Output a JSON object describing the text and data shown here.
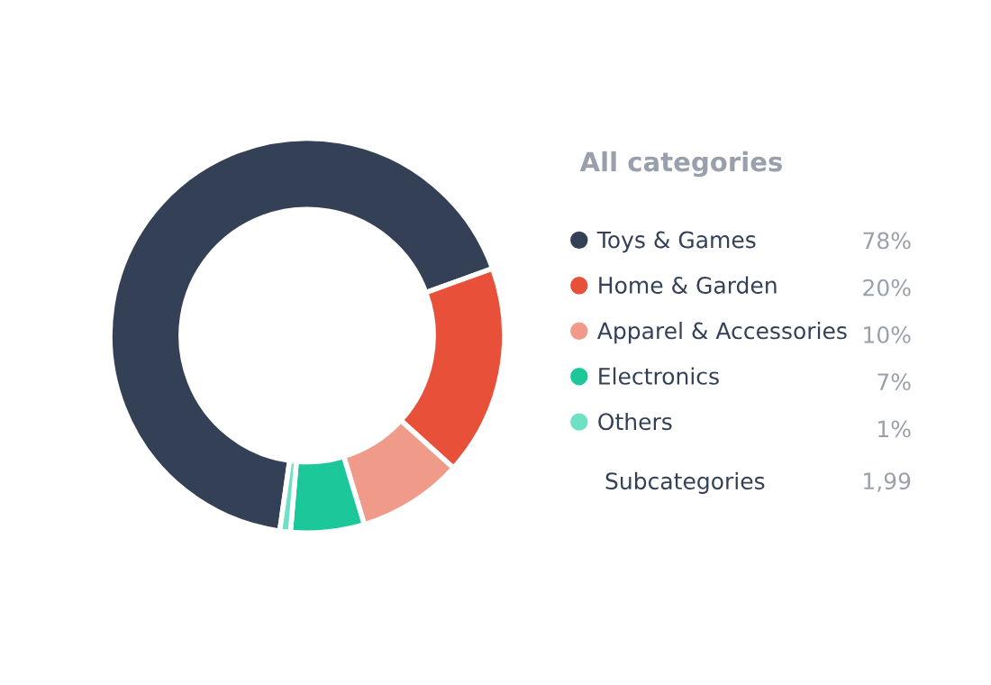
{
  "chart_data": {
    "type": "donut",
    "legend_title": "All categories",
    "categories": [
      "Toys & Games",
      "Home & Garden",
      "Apparel & Accessories",
      "Electronics",
      "Others"
    ],
    "values": [
      78,
      20,
      10,
      7,
      1
    ],
    "colors": [
      "#344055",
      "#e8503a",
      "#f09a8a",
      "#1cc79a",
      "#6fe0c4"
    ],
    "value_labels": [
      "78%",
      "20%",
      "10%",
      "7%",
      "1%"
    ],
    "legend": "right",
    "annotations": [
      "Subcategories",
      "1,99"
    ]
  }
}
